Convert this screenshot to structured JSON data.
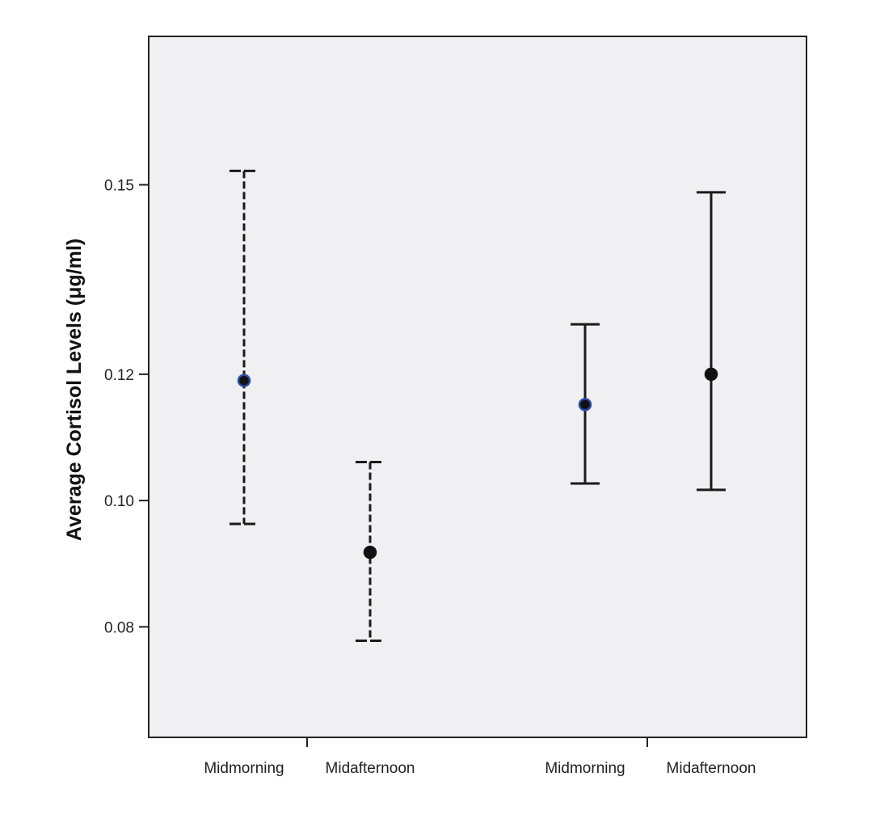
{
  "chart_data": {
    "type": "scatter",
    "ylabel": "Average Cortisol Levels (μg/ml)",
    "ylim": [
      0.0625,
      0.1735
    ],
    "y_ticks": [
      {
        "value": 0.08,
        "label": "0.08"
      },
      {
        "value": 0.1,
        "label": "0.10"
      },
      {
        "value": 0.12,
        "label": "0.12"
      },
      {
        "value": 0.15,
        "label": "0.15"
      }
    ],
    "categories": [
      "Midmorning",
      "Midafternoon",
      "Midmorning",
      "Midafternoon"
    ],
    "points": [
      {
        "category": "Midmorning",
        "mean": 0.119,
        "lower": 0.0963,
        "upper": 0.1522,
        "line_style": "dashed",
        "marker_color": "#2a4aa8"
      },
      {
        "category": "Midafternoon",
        "mean": 0.0918,
        "lower": 0.0778,
        "upper": 0.1061,
        "line_style": "dashed",
        "marker_color": "#111111"
      },
      {
        "category": "Midmorning",
        "mean": 0.1152,
        "lower": 0.1027,
        "upper": 0.1279,
        "line_style": "solid",
        "marker_color": "#2a4aa8"
      },
      {
        "category": "Midafternoon",
        "mean": 0.12,
        "lower": 0.1017,
        "upper": 0.1488,
        "line_style": "solid",
        "marker_color": "#111111"
      }
    ],
    "grid": false,
    "plot_background": "#f0f0f2"
  }
}
